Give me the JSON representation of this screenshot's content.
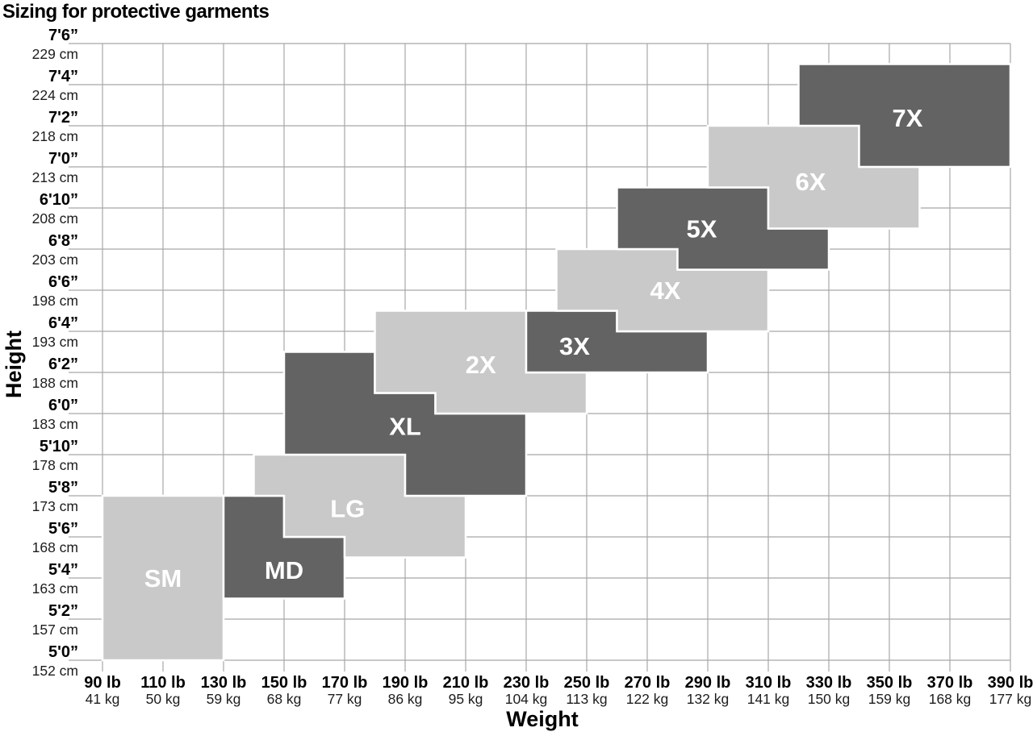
{
  "title": "Sizing for protective garments",
  "colors": {
    "zone_light": "#c9c9c9",
    "zone_dark": "#636363",
    "zone_label": "#ffffff",
    "grid": "#a8a8a8",
    "text_primary": "#000000",
    "text_secondary": "#1d1d1d"
  },
  "chart_data": {
    "type": "heatmap",
    "title": "Sizing for protective garments",
    "xlabel": "Weight",
    "ylabel": "Height",
    "grid": true,
    "legend": "none",
    "x_domain_lb": [
      90,
      390
    ],
    "y_domain_in": [
      60,
      90
    ],
    "x_ticks": [
      {
        "lb": "90 lb",
        "kg": "41 kg",
        "value": 90
      },
      {
        "lb": "110 lb",
        "kg": "50 kg",
        "value": 110
      },
      {
        "lb": "130 lb",
        "kg": "59 kg",
        "value": 130
      },
      {
        "lb": "150 lb",
        "kg": "68 kg",
        "value": 150
      },
      {
        "lb": "170 lb",
        "kg": "77 kg",
        "value": 170
      },
      {
        "lb": "190 lb",
        "kg": "86 kg",
        "value": 190
      },
      {
        "lb": "210 lb",
        "kg": "95 kg",
        "value": 210
      },
      {
        "lb": "230 lb",
        "kg": "104 kg",
        "value": 230
      },
      {
        "lb": "250 lb",
        "kg": "113 kg",
        "value": 250
      },
      {
        "lb": "270 lb",
        "kg": "122 kg",
        "value": 270
      },
      {
        "lb": "290 lb",
        "kg": "132 kg",
        "value": 290
      },
      {
        "lb": "310 lb",
        "kg": "141 kg",
        "value": 310
      },
      {
        "lb": "330 lb",
        "kg": "150 kg",
        "value": 330
      },
      {
        "lb": "350 lb",
        "kg": "159 kg",
        "value": 350
      },
      {
        "lb": "370 lb",
        "kg": "168 kg",
        "value": 370
      },
      {
        "lb": "390 lb",
        "kg": "177 kg",
        "value": 390
      }
    ],
    "y_ticks": [
      {
        "ft": "5'0”",
        "cm": "152 cm",
        "inches": 60
      },
      {
        "ft": "5'2”",
        "cm": "157 cm",
        "inches": 62
      },
      {
        "ft": "5'4”",
        "cm": "163 cm",
        "inches": 64
      },
      {
        "ft": "5'6”",
        "cm": "168 cm",
        "inches": 66
      },
      {
        "ft": "5'8”",
        "cm": "173 cm",
        "inches": 68
      },
      {
        "ft": "5'10”",
        "cm": "178 cm",
        "inches": 70
      },
      {
        "ft": "6'0”",
        "cm": "183 cm",
        "inches": 72
      },
      {
        "ft": "6'2”",
        "cm": "188 cm",
        "inches": 74
      },
      {
        "ft": "6'4”",
        "cm": "193 cm",
        "inches": 76
      },
      {
        "ft": "6'6”",
        "cm": "198 cm",
        "inches": 78
      },
      {
        "ft": "6'8”",
        "cm": "203 cm",
        "inches": 80
      },
      {
        "ft": "6'10”",
        "cm": "208 cm",
        "inches": 82
      },
      {
        "ft": "7'0”",
        "cm": "213 cm",
        "inches": 84
      },
      {
        "ft": "7'2”",
        "cm": "218 cm",
        "inches": 86
      },
      {
        "ft": "7'4”",
        "cm": "224 cm",
        "inches": 88
      },
      {
        "ft": "7'6”",
        "cm": "229 cm",
        "inches": 90
      }
    ],
    "zones": [
      {
        "label": "SM",
        "shade": "light",
        "label_at": [
          110,
          64
        ],
        "points": [
          [
            90,
            68
          ],
          [
            130,
            68
          ],
          [
            130,
            60
          ],
          [
            90,
            60
          ]
        ]
      },
      {
        "label": "MD",
        "shade": "dark",
        "label_at": [
          150,
          64.4
        ],
        "points": [
          [
            130,
            68
          ],
          [
            150,
            68
          ],
          [
            150,
            66
          ],
          [
            170,
            66
          ],
          [
            170,
            63
          ],
          [
            130,
            63
          ]
        ]
      },
      {
        "label": "LG",
        "shade": "light",
        "label_at": [
          171,
          67.4
        ],
        "points": [
          [
            140,
            70
          ],
          [
            190,
            70
          ],
          [
            190,
            68
          ],
          [
            210,
            68
          ],
          [
            210,
            65
          ],
          [
            170,
            65
          ],
          [
            170,
            66
          ],
          [
            150,
            66
          ],
          [
            150,
            68
          ],
          [
            140,
            68
          ]
        ]
      },
      {
        "label": "XL",
        "shade": "dark",
        "label_at": [
          190,
          71.4
        ],
        "points": [
          [
            150,
            75
          ],
          [
            180,
            75
          ],
          [
            180,
            73
          ],
          [
            200,
            73
          ],
          [
            200,
            72
          ],
          [
            230,
            72
          ],
          [
            230,
            68
          ],
          [
            190,
            68
          ],
          [
            190,
            70
          ],
          [
            150,
            70
          ]
        ]
      },
      {
        "label": "2X",
        "shade": "light",
        "label_at": [
          215,
          74.4
        ],
        "points": [
          [
            180,
            77
          ],
          [
            230,
            77
          ],
          [
            230,
            74
          ],
          [
            250,
            74
          ],
          [
            250,
            72
          ],
          [
            200,
            72
          ],
          [
            200,
            73
          ],
          [
            180,
            73
          ]
        ]
      },
      {
        "label": "3X",
        "shade": "dark",
        "label_at": [
          246,
          75.3
        ],
        "points": [
          [
            230,
            77
          ],
          [
            260,
            77
          ],
          [
            260,
            76
          ],
          [
            290,
            76
          ],
          [
            290,
            74
          ],
          [
            230,
            74
          ]
        ]
      },
      {
        "label": "4X",
        "shade": "light",
        "label_at": [
          276,
          78
        ],
        "points": [
          [
            240,
            80
          ],
          [
            280,
            80
          ],
          [
            280,
            79
          ],
          [
            310,
            79
          ],
          [
            310,
            76
          ],
          [
            260,
            76
          ],
          [
            260,
            77
          ],
          [
            240,
            77
          ]
        ]
      },
      {
        "label": "5X",
        "shade": "dark",
        "label_at": [
          288,
          81
        ],
        "points": [
          [
            260,
            83
          ],
          [
            310,
            83
          ],
          [
            310,
            81
          ],
          [
            330,
            81
          ],
          [
            330,
            79
          ],
          [
            280,
            79
          ],
          [
            280,
            80
          ],
          [
            260,
            80
          ]
        ]
      },
      {
        "label": "6X",
        "shade": "light",
        "label_at": [
          324,
          83.3
        ],
        "points": [
          [
            290,
            86
          ],
          [
            340,
            86
          ],
          [
            340,
            84
          ],
          [
            360,
            84
          ],
          [
            360,
            81
          ],
          [
            310,
            81
          ],
          [
            310,
            83
          ],
          [
            290,
            83
          ]
        ]
      },
      {
        "label": "7X",
        "shade": "dark",
        "label_at": [
          356,
          86.4
        ],
        "points": [
          [
            320,
            89
          ],
          [
            390,
            89
          ],
          [
            390,
            84
          ],
          [
            340,
            84
          ],
          [
            340,
            86
          ],
          [
            320,
            86
          ]
        ]
      }
    ]
  }
}
